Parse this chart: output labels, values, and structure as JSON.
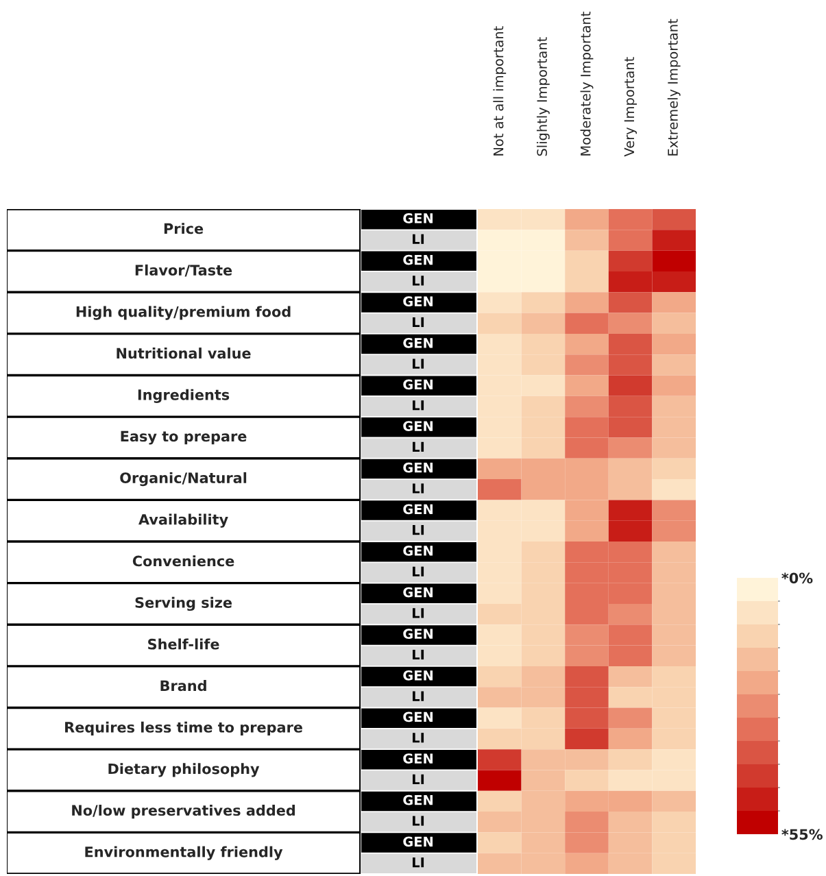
{
  "chart_data": {
    "type": "heatmap",
    "categories": [
      "Not at all important",
      "Slightly Important",
      "Moderately Important",
      "Very Important",
      "Extremely Important"
    ],
    "y_categories": [
      "GEN",
      "LI",
      "GEN",
      "LI",
      "GEN",
      "LI",
      "GEN",
      "LI",
      "GEN",
      "LI",
      "GEN",
      "LI",
      "GEN",
      "LI",
      "GEN",
      "LI",
      "GEN",
      "LI",
      "GEN",
      "LI",
      "GEN",
      "LI",
      "GEN",
      "LI",
      "GEN",
      "LI",
      "GEN",
      "LI",
      "GEN",
      "LI",
      "GEN",
      "LI"
    ],
    "y2_categories": [
      "Price",
      null,
      "Flavor/Taste",
      null,
      "High quality/premium food",
      null,
      "Nutritional value",
      null,
      "Ingredients",
      null,
      "Easy to prepare",
      null,
      "Organic/Natural",
      null,
      "Availability",
      null,
      "Convenience",
      null,
      "Serving size",
      null,
      "Shelf-life",
      null,
      "Brand",
      null,
      "Requires less time to prepare",
      null,
      "Dietary philosophy",
      null,
      "No/low preservatives added",
      null,
      "Environmentally friendly",
      null
    ],
    "cells": [
      [
        5,
        5,
        20,
        30,
        35
      ],
      [
        3,
        3,
        15,
        32,
        45
      ],
      [
        3,
        3,
        10,
        40,
        50
      ],
      [
        3,
        3,
        12,
        45,
        45
      ],
      [
        5,
        10,
        20,
        38,
        20
      ],
      [
        10,
        15,
        30,
        25,
        15
      ],
      [
        5,
        10,
        20,
        38,
        20
      ],
      [
        8,
        10,
        25,
        38,
        15
      ],
      [
        5,
        8,
        20,
        40,
        20
      ],
      [
        8,
        10,
        25,
        35,
        15
      ],
      [
        8,
        10,
        30,
        35,
        15
      ],
      [
        8,
        10,
        30,
        28,
        15
      ],
      [
        20,
        20,
        20,
        15,
        12
      ],
      [
        32,
        20,
        20,
        15,
        8
      ],
      [
        5,
        5,
        20,
        45,
        25
      ],
      [
        5,
        5,
        20,
        45,
        25
      ],
      [
        5,
        12,
        30,
        33,
        15
      ],
      [
        5,
        12,
        30,
        30,
        15
      ],
      [
        8,
        12,
        32,
        30,
        15
      ],
      [
        10,
        12,
        30,
        25,
        15
      ],
      [
        5,
        12,
        28,
        32,
        15
      ],
      [
        8,
        12,
        25,
        32,
        15
      ],
      [
        12,
        18,
        38,
        18,
        12
      ],
      [
        18,
        18,
        35,
        12,
        10
      ],
      [
        8,
        12,
        38,
        25,
        12
      ],
      [
        10,
        12,
        40,
        20,
        12
      ],
      [
        40,
        15,
        15,
        10,
        8
      ],
      [
        55,
        15,
        12,
        8,
        8
      ],
      [
        10,
        15,
        22,
        22,
        15
      ],
      [
        15,
        18,
        25,
        15,
        10
      ],
      [
        12,
        15,
        25,
        15,
        12
      ],
      [
        15,
        15,
        22,
        15,
        12
      ]
    ],
    "clim": [
      0,
      55
    ],
    "cticks": [
      {
        "value": 0,
        "label": "*0%"
      },
      {
        "value": 55,
        "label": "*55%"
      }
    ]
  }
}
